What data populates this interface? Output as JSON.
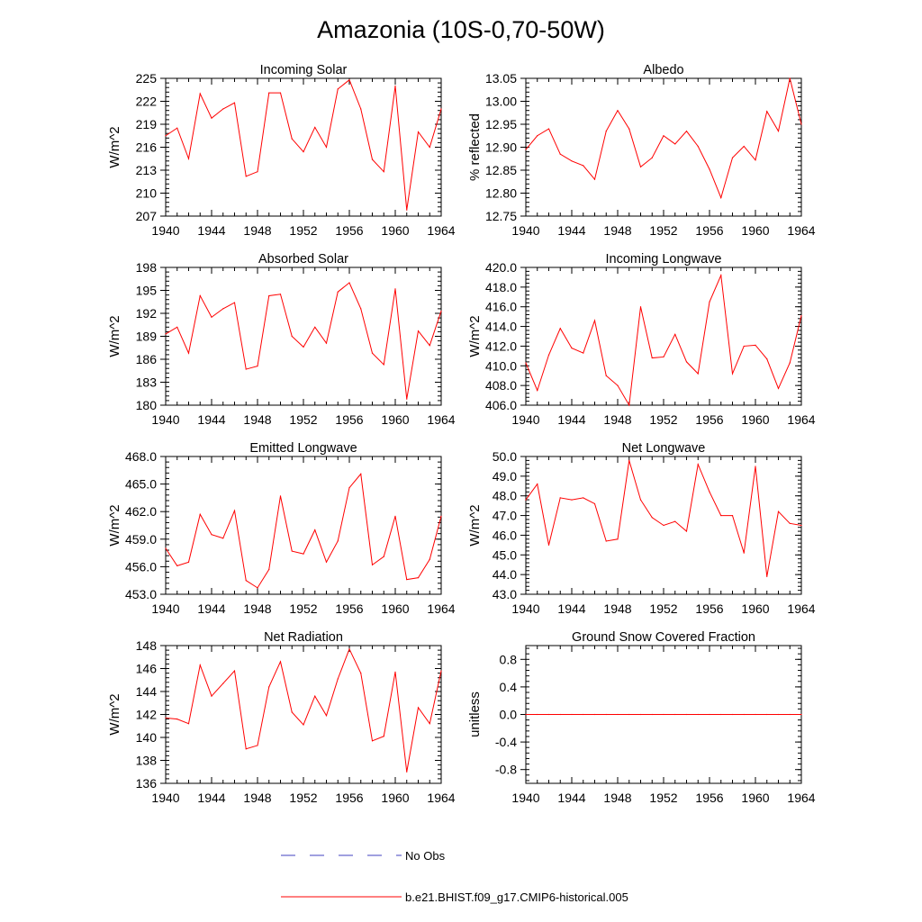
{
  "title": "Amazonia (10S-0,70-50W)",
  "colors": {
    "model": "#ff0000",
    "obs": "#4040c0"
  },
  "legend": {
    "items": [
      {
        "label": "No Obs",
        "style": "dashed",
        "color": "#4040c0"
      },
      {
        "label": "b.e21.BHIST.f09_g17.CMIP6-historical.005",
        "style": "solid",
        "color": "#ff0000"
      }
    ]
  },
  "chart_data": [
    {
      "type": "line",
      "title": "Incoming Solar",
      "xlabel": "",
      "ylabel": "W/m^2",
      "xlim": [
        1940,
        1964
      ],
      "xticks": [
        1940,
        1944,
        1948,
        1952,
        1956,
        1960,
        1964
      ],
      "ylim": [
        207,
        225
      ],
      "yticks": [
        207,
        210,
        213,
        216,
        219,
        222,
        225
      ],
      "ytick_labels": [
        "207",
        "210",
        "213",
        "216",
        "219",
        "222",
        "225"
      ],
      "series": [
        {
          "name": "b.e21.BHIST.f09_g17.CMIP6-historical.005",
          "x": [
            1940,
            1941,
            1942,
            1943,
            1944,
            1945,
            1946,
            1947,
            1948,
            1949,
            1950,
            1951,
            1952,
            1953,
            1954,
            1955,
            1956,
            1957,
            1958,
            1959,
            1960,
            1961,
            1962,
            1963,
            1964
          ],
          "values": [
            217.5,
            218.5,
            214.5,
            223.0,
            219.8,
            221.0,
            221.8,
            212.2,
            212.8,
            223.1,
            223.1,
            217.1,
            215.4,
            218.6,
            216.0,
            223.6,
            224.8,
            221.0,
            214.4,
            212.8,
            224.0,
            207.8,
            218.0,
            216.0,
            221.0
          ]
        }
      ]
    },
    {
      "type": "line",
      "title": "Albedo",
      "xlabel": "",
      "ylabel": "% reflected",
      "xlim": [
        1940,
        1964
      ],
      "xticks": [
        1940,
        1944,
        1948,
        1952,
        1956,
        1960,
        1964
      ],
      "ylim": [
        12.75,
        13.05
      ],
      "yticks": [
        12.75,
        12.8,
        12.85,
        12.9,
        12.95,
        13.0,
        13.05
      ],
      "ytick_labels": [
        "12.75",
        "12.80",
        "12.85",
        "12.90",
        "12.95",
        "13.00",
        "13.05"
      ],
      "series": [
        {
          "name": "b.e21.BHIST.f09_g17.CMIP6-historical.005",
          "x": [
            1940,
            1941,
            1942,
            1943,
            1944,
            1945,
            1946,
            1947,
            1948,
            1949,
            1950,
            1951,
            1952,
            1953,
            1954,
            1955,
            1956,
            1957,
            1958,
            1959,
            1960,
            1961,
            1962,
            1963,
            1964
          ],
          "values": [
            12.895,
            12.925,
            12.94,
            12.885,
            12.87,
            12.86,
            12.83,
            12.935,
            12.98,
            12.94,
            12.857,
            12.877,
            12.925,
            12.907,
            12.935,
            12.902,
            12.852,
            12.79,
            12.877,
            12.902,
            12.872,
            12.978,
            12.935,
            13.05,
            12.95
          ]
        }
      ]
    },
    {
      "type": "line",
      "title": "Absorbed Solar",
      "xlabel": "",
      "ylabel": "W/m^2",
      "xlim": [
        1940,
        1964
      ],
      "xticks": [
        1940,
        1944,
        1948,
        1952,
        1956,
        1960,
        1964
      ],
      "ylim": [
        180,
        198
      ],
      "yticks": [
        180,
        183,
        186,
        189,
        192,
        195,
        198
      ],
      "ytick_labels": [
        "180",
        "183",
        "186",
        "189",
        "192",
        "195",
        "198"
      ],
      "series": [
        {
          "name": "b.e21.BHIST.f09_g17.CMIP6-historical.005",
          "x": [
            1940,
            1941,
            1942,
            1943,
            1944,
            1945,
            1946,
            1947,
            1948,
            1949,
            1950,
            1951,
            1952,
            1953,
            1954,
            1955,
            1956,
            1957,
            1958,
            1959,
            1960,
            1961,
            1962,
            1963,
            1964
          ],
          "values": [
            189.3,
            190.2,
            186.8,
            194.3,
            191.5,
            192.6,
            193.4,
            184.7,
            185.1,
            194.3,
            194.5,
            189.0,
            187.6,
            190.2,
            188.1,
            194.8,
            196.0,
            192.6,
            186.8,
            185.3,
            195.2,
            180.8,
            189.7,
            187.8,
            192.3
          ]
        }
      ]
    },
    {
      "type": "line",
      "title": "Incoming Longwave",
      "xlabel": "",
      "ylabel": "W/m^2",
      "xlim": [
        1940,
        1964
      ],
      "xticks": [
        1940,
        1944,
        1948,
        1952,
        1956,
        1960,
        1964
      ],
      "ylim": [
        406.0,
        420.0
      ],
      "yticks": [
        406,
        408,
        410,
        412,
        414,
        416,
        418,
        420
      ],
      "ytick_labels": [
        "406.0",
        "408.0",
        "410.0",
        "412.0",
        "414.0",
        "416.0",
        "418.0",
        "420.0"
      ],
      "series": [
        {
          "name": "b.e21.BHIST.f09_g17.CMIP6-historical.005",
          "x": [
            1940,
            1941,
            1942,
            1943,
            1944,
            1945,
            1946,
            1947,
            1948,
            1949,
            1950,
            1951,
            1952,
            1953,
            1954,
            1955,
            1956,
            1957,
            1958,
            1959,
            1960,
            1961,
            1962,
            1963,
            1964
          ],
          "values": [
            410.3,
            407.5,
            411.1,
            413.8,
            411.8,
            411.3,
            414.6,
            409.0,
            408.0,
            406.0,
            416.0,
            410.8,
            410.9,
            413.2,
            410.4,
            409.2,
            416.5,
            419.2,
            409.2,
            412.0,
            412.1,
            410.7,
            407.7,
            410.3,
            415.1
          ]
        }
      ]
    },
    {
      "type": "line",
      "title": "Emitted Longwave",
      "xlabel": "",
      "ylabel": "W/m^2",
      "xlim": [
        1940,
        1964
      ],
      "xticks": [
        1940,
        1944,
        1948,
        1952,
        1956,
        1960,
        1964
      ],
      "ylim": [
        453.0,
        468.0
      ],
      "yticks": [
        453,
        456,
        459,
        462,
        465,
        468
      ],
      "ytick_labels": [
        "453.0",
        "456.0",
        "459.0",
        "462.0",
        "465.0",
        "468.0"
      ],
      "series": [
        {
          "name": "b.e21.BHIST.f09_g17.CMIP6-historical.005",
          "x": [
            1940,
            1941,
            1942,
            1943,
            1944,
            1945,
            1946,
            1947,
            1948,
            1949,
            1950,
            1951,
            1952,
            1953,
            1954,
            1955,
            1956,
            1957,
            1958,
            1959,
            1960,
            1961,
            1962,
            1963,
            1964
          ],
          "values": [
            458.0,
            456.1,
            456.5,
            461.7,
            459.5,
            459.1,
            462.1,
            454.5,
            453.7,
            455.7,
            463.7,
            457.7,
            457.4,
            460.0,
            456.5,
            458.8,
            464.6,
            466.1,
            456.2,
            457.1,
            461.5,
            454.6,
            454.8,
            456.8,
            461.5
          ]
        }
      ]
    },
    {
      "type": "line",
      "title": "Net Longwave",
      "xlabel": "",
      "ylabel": "W/m^2",
      "xlim": [
        1940,
        1964
      ],
      "xticks": [
        1940,
        1944,
        1948,
        1952,
        1956,
        1960,
        1964
      ],
      "ylim": [
        43.0,
        50.0
      ],
      "yticks": [
        43,
        44,
        45,
        46,
        47,
        48,
        49,
        50
      ],
      "ytick_labels": [
        "43.0",
        "44.0",
        "45.0",
        "46.0",
        "47.0",
        "48.0",
        "49.0",
        "50.0"
      ],
      "series": [
        {
          "name": "b.e21.BHIST.f09_g17.CMIP6-historical.005",
          "x": [
            1940,
            1941,
            1942,
            1943,
            1944,
            1945,
            1946,
            1947,
            1948,
            1949,
            1950,
            1951,
            1952,
            1953,
            1954,
            1955,
            1956,
            1957,
            1958,
            1959,
            1960,
            1961,
            1962,
            1963,
            1964
          ],
          "values": [
            47.8,
            48.6,
            45.5,
            47.9,
            47.8,
            47.9,
            47.6,
            45.7,
            45.8,
            49.8,
            47.8,
            46.9,
            46.5,
            46.7,
            46.2,
            49.6,
            48.2,
            47.0,
            47.0,
            45.1,
            49.5,
            43.9,
            47.2,
            46.6,
            46.5
          ]
        }
      ]
    },
    {
      "type": "line",
      "title": "Net Radiation",
      "xlabel": "",
      "ylabel": "W/m^2",
      "xlim": [
        1940,
        1964
      ],
      "xticks": [
        1940,
        1944,
        1948,
        1952,
        1956,
        1960,
        1964
      ],
      "ylim": [
        136,
        148
      ],
      "yticks": [
        136,
        138,
        140,
        142,
        144,
        146,
        148
      ],
      "ytick_labels": [
        "136",
        "138",
        "140",
        "142",
        "144",
        "146",
        "148"
      ],
      "series": [
        {
          "name": "b.e21.BHIST.f09_g17.CMIP6-historical.005",
          "x": [
            1940,
            1941,
            1942,
            1943,
            1944,
            1945,
            1946,
            1947,
            1948,
            1949,
            1950,
            1951,
            1952,
            1953,
            1954,
            1955,
            1956,
            1957,
            1958,
            1959,
            1960,
            1961,
            1962,
            1963,
            1964
          ],
          "values": [
            141.7,
            141.6,
            141.2,
            146.3,
            143.6,
            144.7,
            145.8,
            139.0,
            139.3,
            144.4,
            146.6,
            142.2,
            141.1,
            143.6,
            141.9,
            145.1,
            147.7,
            145.6,
            139.7,
            140.1,
            145.7,
            137.0,
            142.6,
            141.2,
            145.8
          ]
        }
      ]
    },
    {
      "type": "line",
      "title": "Ground Snow Covered Fraction",
      "xlabel": "",
      "ylabel": "unitless",
      "xlim": [
        1940,
        1964
      ],
      "xticks": [
        1940,
        1944,
        1948,
        1952,
        1956,
        1960,
        1964
      ],
      "ylim": [
        -1.0,
        1.0
      ],
      "yticks": [
        -0.8,
        -0.4,
        0.0,
        0.4,
        0.8
      ],
      "ytick_labels": [
        "-0.8",
        "-0.4",
        "0.0",
        "0.4",
        "0.8"
      ],
      "series": [
        {
          "name": "b.e21.BHIST.f09_g17.CMIP6-historical.005",
          "x": [
            1940,
            1941,
            1942,
            1943,
            1944,
            1945,
            1946,
            1947,
            1948,
            1949,
            1950,
            1951,
            1952,
            1953,
            1954,
            1955,
            1956,
            1957,
            1958,
            1959,
            1960,
            1961,
            1962,
            1963,
            1964
          ],
          "values": [
            0,
            0,
            0,
            0,
            0,
            0,
            0,
            0,
            0,
            0,
            0,
            0,
            0,
            0,
            0,
            0,
            0,
            0,
            0,
            0,
            0,
            0,
            0,
            0,
            0
          ]
        }
      ]
    }
  ]
}
